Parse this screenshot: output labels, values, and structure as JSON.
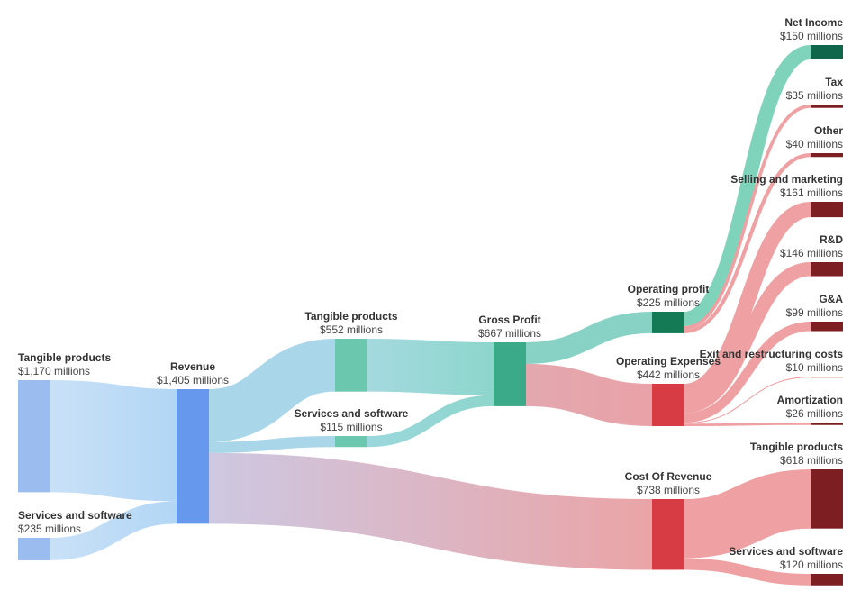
{
  "chart_data": {
    "type": "sankey",
    "unit_prefix": "$",
    "unit_suffix": " millions",
    "nodes": [
      {
        "id": "src_tangible",
        "name": "Tangible products",
        "value": "$1,170 millions",
        "amount": 1170,
        "color": "#9bbcef"
      },
      {
        "id": "src_services",
        "name": "Services and software",
        "value": "$235 millions",
        "amount": 235,
        "color": "#9bbcef"
      },
      {
        "id": "revenue",
        "name": "Revenue",
        "value": "$1,405 millions",
        "amount": 1405,
        "color": "#6699ee"
      },
      {
        "id": "gp_tangible",
        "name": "Tangible products",
        "value": "$552 millions",
        "amount": 552,
        "color": "#6bc7ad"
      },
      {
        "id": "gp_services",
        "name": "Services and software",
        "value": "$115 millions",
        "amount": 115,
        "color": "#6bc7ad"
      },
      {
        "id": "gross_profit",
        "name": "Gross Profit",
        "value": "$667 millions",
        "amount": 667,
        "color": "#3aaa88"
      },
      {
        "id": "op_profit",
        "name": "Operating profit",
        "value": "$225 millions",
        "amount": 225,
        "color": "#137a55"
      },
      {
        "id": "op_expenses",
        "name": "Operating Expenses",
        "value": "$442 millions",
        "amount": 442,
        "color": "#d73c45"
      },
      {
        "id": "cost_revenue",
        "name": "Cost Of Revenue",
        "value": "$738 millions",
        "amount": 738,
        "color": "#d73c45"
      },
      {
        "id": "net_income",
        "name": "Net Income",
        "value": "$150 millions",
        "amount": 150,
        "color": "#10664a"
      },
      {
        "id": "tax",
        "name": "Tax",
        "value": "$35 millions",
        "amount": 35,
        "color": "#7d1f22"
      },
      {
        "id": "other",
        "name": "Other",
        "value": "$40 millions",
        "amount": 40,
        "color": "#7d1f22"
      },
      {
        "id": "selling",
        "name": "Selling and marketing",
        "value": "$161 millions",
        "amount": 161,
        "color": "#7d1f22"
      },
      {
        "id": "rnd",
        "name": "R&D",
        "value": "$146 millions",
        "amount": 146,
        "color": "#7d1f22"
      },
      {
        "id": "gna",
        "name": "G&A",
        "value": "$99 millions",
        "amount": 99,
        "color": "#7d1f22"
      },
      {
        "id": "exit",
        "name": "Exit and restructuring costs",
        "value": "$10 millions",
        "amount": 10,
        "color": "#7d1f22"
      },
      {
        "id": "amort",
        "name": "Amortization",
        "value": "$26 millions",
        "amount": 26,
        "color": "#7d1f22"
      },
      {
        "id": "cor_tangible",
        "name": "Tangible products",
        "value": "$618 millions",
        "amount": 618,
        "color": "#7d1f22"
      },
      {
        "id": "cor_services",
        "name": "Services and software",
        "value": "$120 millions",
        "amount": 120,
        "color": "#7d1f22"
      }
    ],
    "links": [
      {
        "source": "src_tangible",
        "target": "revenue",
        "value": 1170,
        "from_color": "#c9e1f7",
        "to_color": "#b2d6f5"
      },
      {
        "source": "src_services",
        "target": "revenue",
        "value": 235,
        "from_color": "#c9e1f7",
        "to_color": "#b2d6f5"
      },
      {
        "source": "revenue",
        "target": "gp_tangible",
        "value": 552,
        "from_color": "#a9d6e8",
        "to_color": "#a9d6e8"
      },
      {
        "source": "revenue",
        "target": "gp_services",
        "value": 115,
        "from_color": "#a9d6e8",
        "to_color": "#a9d6e8"
      },
      {
        "source": "revenue",
        "target": "cost_revenue",
        "value": 738,
        "from_color": "#cdc8e2",
        "to_color": "#eaa4a6"
      },
      {
        "source": "gp_tangible",
        "target": "gross_profit",
        "value": 552,
        "from_color": "#a4d9df",
        "to_color": "#8dd6cc"
      },
      {
        "source": "gp_services",
        "target": "gross_profit",
        "value": 115,
        "from_color": "#9bd7dc",
        "to_color": "#8dd6cc"
      },
      {
        "source": "gross_profit",
        "target": "op_profit",
        "value": 225,
        "from_color": "#87d2c4",
        "to_color": "#87d2c4"
      },
      {
        "source": "gross_profit",
        "target": "op_expenses",
        "value": 442,
        "from_color": "#e2a8ae",
        "to_color": "#e9a2a8"
      },
      {
        "source": "op_profit",
        "target": "net_income",
        "value": 150,
        "from_color": "#7fd3bb",
        "to_color": "#7fd3bb"
      },
      {
        "source": "op_profit",
        "target": "tax",
        "value": 35,
        "from_color": "#eea0a2",
        "to_color": "#eea0a2"
      },
      {
        "source": "op_profit",
        "target": "other",
        "value": 40,
        "from_color": "#eea0a2",
        "to_color": "#eea0a2"
      },
      {
        "source": "op_expenses",
        "target": "selling",
        "value": 161,
        "from_color": "#eea0a2",
        "to_color": "#eea0a2"
      },
      {
        "source": "op_expenses",
        "target": "rnd",
        "value": 146,
        "from_color": "#eea0a2",
        "to_color": "#eea0a2"
      },
      {
        "source": "op_expenses",
        "target": "gna",
        "value": 99,
        "from_color": "#eea0a2",
        "to_color": "#eea0a2"
      },
      {
        "source": "op_expenses",
        "target": "exit",
        "value": 10,
        "from_color": "#eea0a2",
        "to_color": "#eea0a2"
      },
      {
        "source": "op_expenses",
        "target": "amort",
        "value": 26,
        "from_color": "#eea0a2",
        "to_color": "#eea0a2"
      },
      {
        "source": "cost_revenue",
        "target": "cor_tangible",
        "value": 618,
        "from_color": "#eea0a2",
        "to_color": "#eea0a2"
      },
      {
        "source": "cost_revenue",
        "target": "cor_services",
        "value": 120,
        "from_color": "#eea0a2",
        "to_color": "#eea0a2"
      }
    ]
  }
}
